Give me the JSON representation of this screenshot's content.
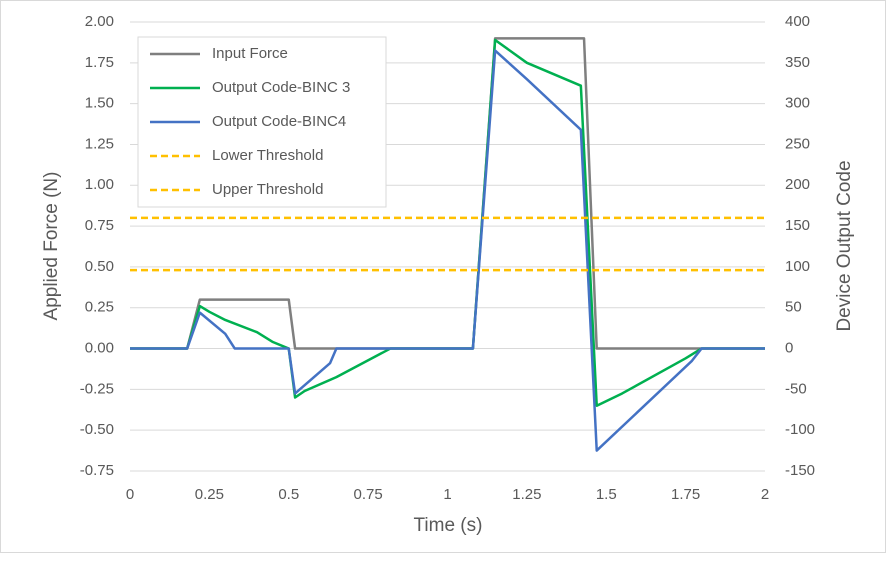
{
  "chart_data": {
    "type": "line",
    "x_label": "Time (s)",
    "y_label": "Applied Force (N)",
    "y2_label": "Device Output Code",
    "xlim": [
      0,
      2
    ],
    "xticks": [
      0,
      0.25,
      0.5,
      0.75,
      1,
      1.25,
      1.5,
      1.75,
      2
    ],
    "ylim": [
      -0.75,
      2
    ],
    "yticks": [
      {
        "value": -0.75,
        "label": "-0.75"
      },
      {
        "value": -0.5,
        "label": "-0.50"
      },
      {
        "value": -0.25,
        "label": "-0.25"
      },
      {
        "value": 0,
        "label": "0.00"
      },
      {
        "value": 0.25,
        "label": "0.25"
      },
      {
        "value": 0.5,
        "label": "0.50"
      },
      {
        "value": 0.75,
        "label": "0.75"
      },
      {
        "value": 1,
        "label": "1.00"
      },
      {
        "value": 1.25,
        "label": "1.25"
      },
      {
        "value": 1.5,
        "label": "1.50"
      },
      {
        "value": 1.75,
        "label": "1.75"
      },
      {
        "value": 2,
        "label": "2.00"
      }
    ],
    "y2lim": [
      -150,
      400
    ],
    "y2ticks": [
      -150,
      -100,
      -50,
      0,
      50,
      100,
      150,
      200,
      250,
      300,
      350,
      400
    ],
    "grid": true,
    "legend": "top-left",
    "series": [
      {
        "name": "Input Force",
        "color": "#7f7f7f",
        "dashed": false,
        "x": [
          0,
          0.18,
          0.22,
          0.5,
          0.52,
          1.08,
          1.15,
          1.43,
          1.47,
          2
        ],
        "values": [
          0,
          0,
          0.3,
          0.3,
          0,
          0,
          1.9,
          1.9,
          0,
          0
        ]
      },
      {
        "name": "Output Code-BINC 3",
        "color": "#00b050",
        "axis": "y2",
        "dashed": false,
        "x": [
          0,
          0.18,
          0.22,
          0.25,
          0.3,
          0.4,
          0.45,
          0.5,
          0.52,
          0.55,
          0.65,
          0.82,
          1.08,
          1.15,
          1.25,
          1.42,
          1.47,
          1.55,
          1.75,
          1.8,
          2
        ],
        "values": [
          0,
          0,
          52,
          45,
          35,
          20,
          8,
          0,
          -60,
          -52,
          -35,
          0,
          0,
          378,
          350,
          322,
          -70,
          -55,
          -12,
          0,
          0
        ]
      },
      {
        "name": "Output Code-BINC4",
        "color": "#4472c4",
        "axis": "y2",
        "dashed": false,
        "x": [
          0,
          0.18,
          0.22,
          0.3,
          0.33,
          0.5,
          0.52,
          0.63,
          0.65,
          1.08,
          1.15,
          1.25,
          1.42,
          1.47,
          1.77,
          1.8,
          2
        ],
        "values": [
          0,
          0,
          44,
          18,
          0,
          0,
          -55,
          -18,
          0,
          0,
          365,
          330,
          268,
          -125,
          -15,
          0,
          0
        ]
      },
      {
        "name": "Lower Threshold",
        "color": "#ffc000",
        "dashed": true,
        "x": [
          0,
          2
        ],
        "values": [
          0.48,
          0.48
        ]
      },
      {
        "name": "Upper Threshold",
        "color": "#ffc000",
        "dashed": true,
        "x": [
          0,
          2
        ],
        "values": [
          0.8,
          0.8
        ]
      }
    ]
  }
}
